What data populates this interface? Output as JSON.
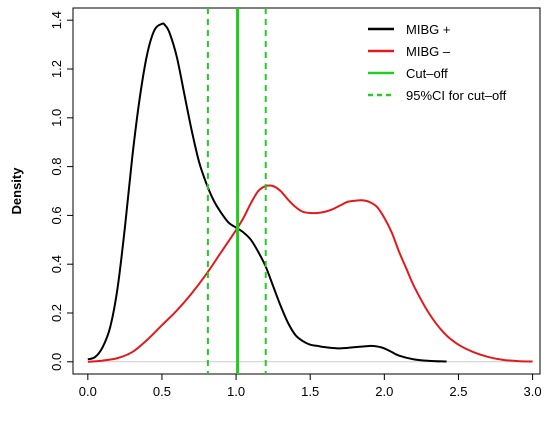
{
  "chart_data": {
    "type": "line",
    "title": "",
    "xlabel": "",
    "ylabel": "Density",
    "xlim": [
      -0.1,
      3.05
    ],
    "ylim": [
      -0.05,
      1.45
    ],
    "xticks": [
      "0.0",
      "0.5",
      "1.0",
      "1.5",
      "2.0",
      "2.5",
      "3.0"
    ],
    "yticks": [
      "0.0",
      "0.2",
      "0.4",
      "0.6",
      "0.8",
      "1.0",
      "1.2",
      "1.4"
    ],
    "grid": false,
    "legend_position": "top-right",
    "baseline": 0,
    "series": [
      {
        "name": "MIBG +",
        "color": "#000000",
        "x": [
          0.0,
          0.05,
          0.1,
          0.15,
          0.2,
          0.25,
          0.3,
          0.35,
          0.4,
          0.45,
          0.5,
          0.52,
          0.55,
          0.6,
          0.65,
          0.7,
          0.75,
          0.8,
          0.85,
          0.9,
          0.95,
          1.0,
          1.05,
          1.1,
          1.15,
          1.2,
          1.25,
          1.3,
          1.35,
          1.4,
          1.45,
          1.5,
          1.55,
          1.6,
          1.7,
          1.8,
          1.9,
          1.95,
          2.0,
          2.05,
          2.1,
          2.2,
          2.3,
          2.42
        ],
        "y": [
          0.01,
          0.02,
          0.06,
          0.14,
          0.3,
          0.55,
          0.84,
          1.08,
          1.26,
          1.36,
          1.385,
          1.38,
          1.35,
          1.25,
          1.1,
          0.95,
          0.82,
          0.73,
          0.66,
          0.61,
          0.57,
          0.55,
          0.53,
          0.5,
          0.45,
          0.39,
          0.31,
          0.23,
          0.16,
          0.11,
          0.085,
          0.07,
          0.065,
          0.06,
          0.055,
          0.06,
          0.065,
          0.063,
          0.055,
          0.04,
          0.025,
          0.01,
          0.004,
          0.001
        ]
      },
      {
        "name": "MIBG –",
        "color": "#e31a1c",
        "x": [
          0.0,
          0.1,
          0.2,
          0.3,
          0.4,
          0.5,
          0.6,
          0.7,
          0.8,
          0.9,
          1.0,
          1.05,
          1.1,
          1.15,
          1.2,
          1.25,
          1.3,
          1.35,
          1.4,
          1.45,
          1.5,
          1.55,
          1.6,
          1.65,
          1.7,
          1.75,
          1.8,
          1.85,
          1.9,
          1.95,
          2.0,
          2.05,
          2.1,
          2.15,
          2.2,
          2.3,
          2.4,
          2.5,
          2.6,
          2.7,
          2.8,
          2.9,
          3.0
        ],
        "y": [
          0.0,
          0.005,
          0.015,
          0.04,
          0.09,
          0.15,
          0.21,
          0.28,
          0.36,
          0.45,
          0.54,
          0.59,
          0.65,
          0.7,
          0.72,
          0.72,
          0.7,
          0.665,
          0.635,
          0.615,
          0.61,
          0.61,
          0.615,
          0.625,
          0.64,
          0.655,
          0.66,
          0.662,
          0.655,
          0.635,
          0.59,
          0.53,
          0.45,
          0.38,
          0.31,
          0.2,
          0.12,
          0.07,
          0.04,
          0.02,
          0.008,
          0.003,
          0.001
        ]
      }
    ],
    "vertical_lines": [
      {
        "name": "Cut–off",
        "x": 1.01,
        "color": "#22cc22",
        "style": "solid"
      },
      {
        "name": "95%CI for cut–off",
        "x": 0.81,
        "color": "#22cc22",
        "style": "dashed"
      },
      {
        "name": "95%CI for cut–off",
        "x": 1.2,
        "color": "#22cc22",
        "style": "dashed"
      }
    ],
    "legend": [
      {
        "label": "MIBG +",
        "color": "#000000",
        "style": "solid"
      },
      {
        "label": "MIBG –",
        "color": "#e31a1c",
        "style": "solid"
      },
      {
        "label": "Cut–off",
        "color": "#22cc22",
        "style": "solid"
      },
      {
        "label": "95%CI for cut–off",
        "color": "#22cc22",
        "style": "dashed"
      }
    ]
  }
}
